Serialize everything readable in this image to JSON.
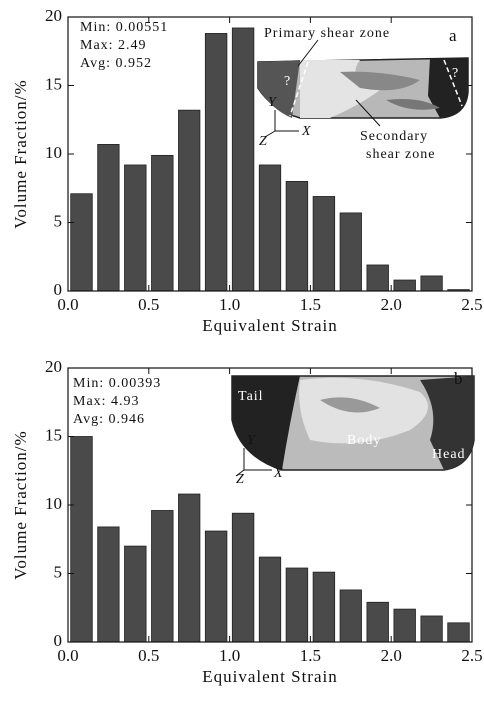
{
  "chart_data": [
    {
      "type": "histogram",
      "bins": [
        0,
        0.167,
        0.333,
        0.5,
        0.667,
        0.833,
        1.0,
        1.167,
        1.333,
        1.5,
        1.667,
        1.833,
        2.0,
        2.167,
        2.333,
        2.5
      ],
      "values": [
        7.1,
        10.7,
        9.2,
        9.9,
        13.2,
        18.8,
        19.2,
        9.2,
        8.0,
        6.9,
        5.7,
        1.9,
        0.8,
        1.1,
        0.1
      ],
      "color": "#4a4a4a",
      "xlim": [
        0,
        2.5
      ],
      "ylim": [
        0,
        20
      ],
      "xticks": [
        {
          "value": 0,
          "label": "0.0"
        },
        {
          "value": 0.5,
          "label": "0.5"
        },
        {
          "value": 1,
          "label": "1.0"
        },
        {
          "value": 1.5,
          "label": "1.5"
        },
        {
          "value": 2,
          "label": "2.0"
        },
        {
          "value": 2.5,
          "label": "2.5"
        }
      ],
      "yticks": [
        0,
        5,
        10,
        15,
        20
      ],
      "x_label": "Equivalent Strain",
      "y_label": "Volume Fraction/%",
      "stats": [
        "Min: 0.00551",
        "Max: 2.49",
        "Avg: 0.952"
      ],
      "panel_label": "a",
      "annotations": [
        "Primary shear zone",
        "Secondary",
        "shear zone",
        "?",
        "?"
      ],
      "axes_labels": [
        "Y",
        "Z",
        "X"
      ]
    },
    {
      "type": "histogram",
      "bins": [
        0,
        0.167,
        0.333,
        0.5,
        0.667,
        0.833,
        1.0,
        1.167,
        1.333,
        1.5,
        1.667,
        1.833,
        2.0,
        2.167,
        2.333,
        2.5
      ],
      "values": [
        15.0,
        8.4,
        7.0,
        9.6,
        10.8,
        8.1,
        9.4,
        6.2,
        5.4,
        5.1,
        3.8,
        2.9,
        2.4,
        1.9,
        1.4
      ],
      "color": "#4a4a4a",
      "xlim": [
        0,
        2.5
      ],
      "ylim": [
        0,
        20
      ],
      "xticks": [
        {
          "value": 0,
          "label": "0.0"
        },
        {
          "value": 0.5,
          "label": "0.5"
        },
        {
          "value": 1,
          "label": "1.0"
        },
        {
          "value": 1.5,
          "label": "1.5"
        },
        {
          "value": 2,
          "label": "2.0"
        },
        {
          "value": 2.5,
          "label": "2.5"
        }
      ],
      "yticks": [
        0,
        5,
        10,
        15,
        20
      ],
      "x_label": "Equivalent Strain",
      "y_label": "Volume Fraction/%",
      "stats": [
        "Min: 0.00393",
        "Max: 4.93",
        "Avg: 0.946"
      ],
      "panel_label": "b",
      "annotations": [
        "Tail",
        "Body",
        "Head"
      ],
      "axes_labels": [
        "Y",
        "Z",
        "X"
      ]
    }
  ]
}
